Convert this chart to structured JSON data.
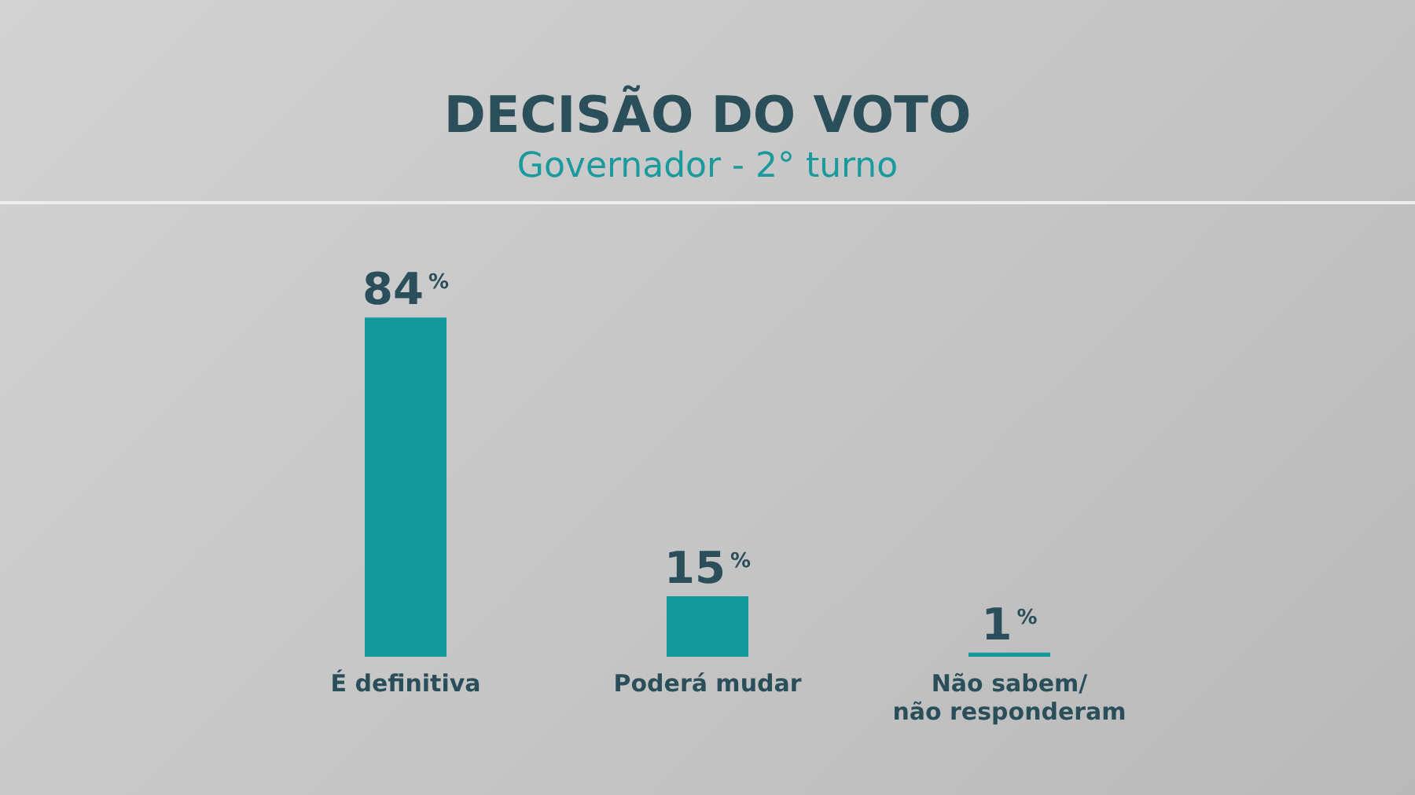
{
  "chart_data": {
    "type": "bar",
    "title": "DECISÃO DO VOTO",
    "subtitle": "Governador - 2° turno",
    "categories": [
      "É definitiva",
      "Poderá mudar",
      "Não sabem/\nnão responderam"
    ],
    "values": [
      84,
      15,
      1
    ],
    "color": "#13999b",
    "value_labels": [
      "84%",
      "15%",
      "1%"
    ],
    "tick_labels": "x"
  }
}
